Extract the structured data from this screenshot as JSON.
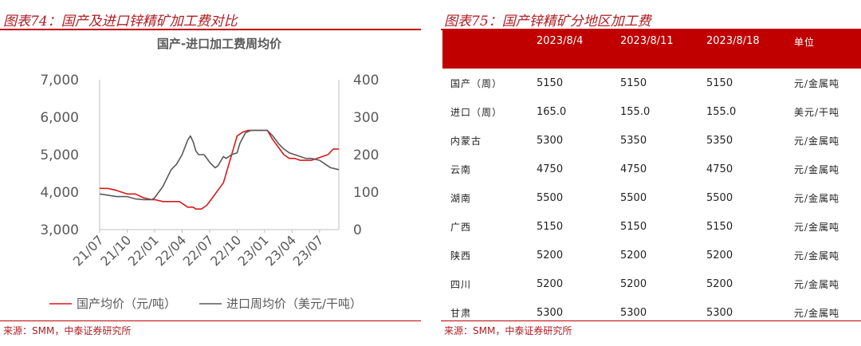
{
  "left": {
    "figure_title": "图表74：国产及进口锌精矿加工费对比",
    "source": "来源：SMM，中泰证券研究所"
  },
  "right": {
    "figure_title": "图表75：国产锌精矿分地区加工费",
    "source": "来源：SMM，中泰证券研究所",
    "table": {
      "headers": [
        "",
        "2023/8/4",
        "2023/8/11",
        "2023/8/18",
        "单位"
      ],
      "rows": [
        [
          "国产（周）",
          "5150",
          "5150",
          "5150",
          "元/金属吨"
        ],
        [
          "进口（周）",
          "165.0",
          "155.0",
          "155.0",
          "美元/干吨"
        ],
        [
          "内蒙古",
          "5300",
          "5350",
          "5350",
          "元/金属吨"
        ],
        [
          "云南",
          "4750",
          "4750",
          "4750",
          "元/金属吨"
        ],
        [
          "湖南",
          "5500",
          "5500",
          "5500",
          "元/金属吨"
        ],
        [
          "广西",
          "5150",
          "5150",
          "5150",
          "元/金属吨"
        ],
        [
          "陕西",
          "5200",
          "5200",
          "5200",
          "元/金属吨"
        ],
        [
          "四川",
          "5200",
          "5200",
          "5200",
          "元/金属吨"
        ],
        [
          "甘肃",
          "5300",
          "5300",
          "5300",
          "元/金属吨"
        ]
      ]
    }
  },
  "chart_data": {
    "type": "line",
    "title": "国产-进口加工费周均价",
    "x_tick_labels": [
      "21/07",
      "21/10",
      "22/01",
      "22/04",
      "22/07",
      "22/10",
      "23/01",
      "23/04",
      "23/07"
    ],
    "ylim_left": [
      3000,
      7000
    ],
    "yticks_left": [
      "3,000",
      "4,000",
      "5,000",
      "6,000",
      "7,000"
    ],
    "ylim_right": [
      0,
      400
    ],
    "yticks_right": [
      "0",
      "100",
      "200",
      "300",
      "400"
    ],
    "legend_position": "bottom",
    "grid": false,
    "series": [
      {
        "name": "国产均价（元/吨）",
        "axis": "left",
        "color": "#d7191c",
        "x": [
          0.0,
          0.3,
          0.6,
          1.0,
          1.3,
          1.6,
          1.9,
          2.0,
          2.3,
          2.6,
          2.9,
          3.1,
          3.2,
          3.4,
          3.5,
          3.7,
          3.9,
          4.1,
          4.3,
          4.5,
          4.7,
          4.9,
          5.0,
          5.2,
          5.4,
          5.6,
          5.8,
          6.1,
          6.3,
          6.5,
          6.7,
          6.9,
          7.1,
          7.3,
          7.5,
          7.7,
          7.9,
          8.1,
          8.3,
          8.5,
          8.7
        ],
        "y": [
          4100,
          4100,
          4050,
          3950,
          3950,
          3850,
          3800,
          3800,
          3750,
          3750,
          3750,
          3650,
          3600,
          3600,
          3550,
          3550,
          3650,
          3850,
          4050,
          4250,
          4750,
          5250,
          5500,
          5600,
          5650,
          5650,
          5650,
          5650,
          5400,
          5200,
          5000,
          4900,
          4900,
          4850,
          4850,
          4850,
          4900,
          4950,
          5000,
          5150,
          5150
        ]
      },
      {
        "name": "进口周均价（美元/干吨）",
        "axis": "right",
        "color": "#595959",
        "x": [
          0.0,
          0.3,
          0.6,
          1.0,
          1.3,
          1.6,
          1.9,
          2.0,
          2.3,
          2.6,
          2.8,
          3.0,
          3.2,
          3.3,
          3.4,
          3.5,
          3.6,
          3.7,
          3.8,
          4.0,
          4.2,
          4.3,
          4.5,
          4.6,
          4.8,
          5.0,
          5.1,
          5.3,
          5.5,
          5.8,
          6.1,
          6.3,
          6.5,
          6.7,
          6.9,
          7.1,
          7.3,
          7.5,
          7.7,
          8.0,
          8.2,
          8.4,
          8.7
        ],
        "y": [
          95,
          92,
          88,
          88,
          82,
          80,
          80,
          85,
          115,
          160,
          175,
          200,
          238,
          250,
          235,
          210,
          200,
          200,
          200,
          180,
          165,
          170,
          195,
          190,
          200,
          205,
          230,
          258,
          265,
          265,
          265,
          250,
          230,
          215,
          205,
          200,
          195,
          190,
          190,
          185,
          175,
          165,
          160
        ]
      }
    ]
  }
}
